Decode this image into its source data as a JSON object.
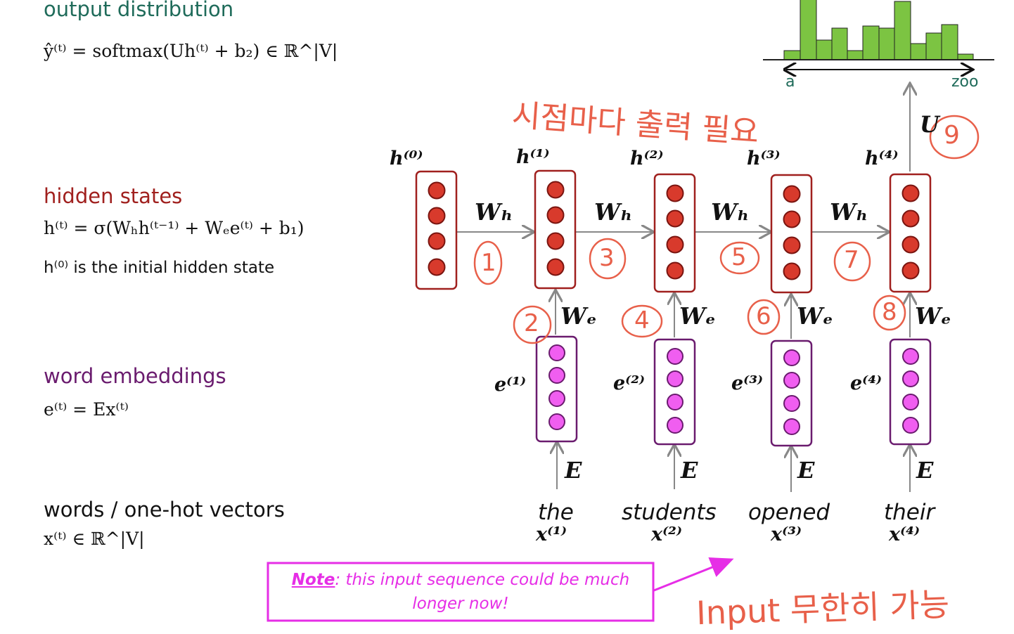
{
  "sections": {
    "output": {
      "title": "output distribution",
      "color": "#1f6b5a",
      "formula": "ŷ⁽ᵗ⁾ = softmax(Uh⁽ᵗ⁾ + b₂) ∈ ℝ^|V|"
    },
    "hidden": {
      "title": "hidden states",
      "color": "#a0201e",
      "formula": "h⁽ᵗ⁾ = σ(Wₕh⁽ᵗ⁻¹⁾ + Wₑe⁽ᵗ⁾ + b₁)",
      "initial": "h⁽⁰⁾ is the initial hidden state"
    },
    "embeddings": {
      "title": "word embeddings",
      "color": "#6a1b6e",
      "formula": "e⁽ᵗ⁾ = Ex⁽ᵗ⁾"
    },
    "words": {
      "title": "words / one-hot vectors",
      "color": "#111111",
      "formula": "x⁽ᵗ⁾ ∈ ℝ^|V|"
    }
  },
  "histogram": {
    "left_label": "a",
    "right_label": "zoo",
    "color": "#7cc442"
  },
  "hidden_labels": [
    "h⁽⁰⁾",
    "h⁽¹⁾",
    "h⁽²⁾",
    "h⁽³⁾",
    "h⁽⁴⁾"
  ],
  "wh_label": "Wₕ",
  "we_label": "Wₑ",
  "e_matrix_label": "E",
  "u_label": "U",
  "embedding_labels": [
    "e⁽¹⁾",
    "e⁽²⁾",
    "e⁽³⁾",
    "e⁽⁴⁾"
  ],
  "input_words": [
    "the",
    "students",
    "opened",
    "their"
  ],
  "input_x_labels": [
    "x⁽¹⁾",
    "x⁽²⁾",
    "x⁽³⁾",
    "x⁽⁴⁾"
  ],
  "note": {
    "prefix": "Note",
    "text": ": this input sequence could be much",
    "text2": "longer now!",
    "color": "#e62ee6"
  },
  "annotations": {
    "top": "시점마다 출력 필요",
    "bottom": "Input 무한히 가능",
    "step_numbers": [
      "1",
      "2",
      "3",
      "4",
      "5",
      "6",
      "7",
      "8",
      "9"
    ]
  }
}
